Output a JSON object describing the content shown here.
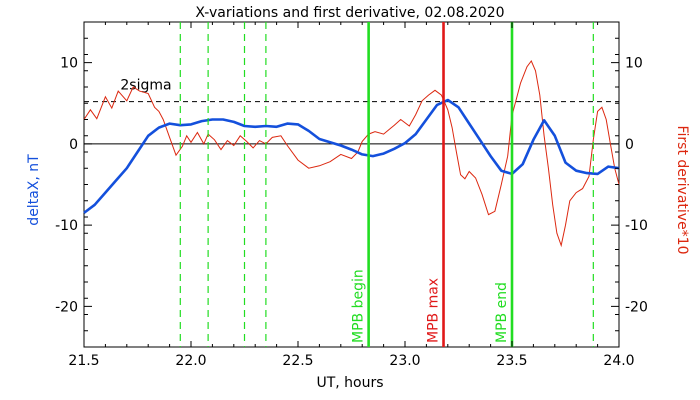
{
  "chart_data": {
    "type": "line",
    "title": "X-variations and first derivative, 02.08.2020",
    "xlabel": "UT, hours",
    "ylabel_left": "deltaX, nT",
    "ylabel_right": "First derivative*10",
    "xlim": [
      21.5,
      24.0
    ],
    "ylim": [
      -25,
      15
    ],
    "x_ticks": [
      {
        "v": 21.5,
        "label": "21.5"
      },
      {
        "v": 22.0,
        "label": "22.0"
      },
      {
        "v": 22.5,
        "label": "22.5"
      },
      {
        "v": 23.0,
        "label": "23.0"
      },
      {
        "v": 23.5,
        "label": "23.5"
      },
      {
        "v": 24.0,
        "label": "24.0"
      }
    ],
    "y_ticks": [
      {
        "v": 10,
        "label": "10"
      },
      {
        "v": 0,
        "label": "0"
      },
      {
        "v": -10,
        "label": "-10"
      },
      {
        "v": -20,
        "label": "-20"
      }
    ],
    "grid": false,
    "colors": {
      "deltaX": "#1450dc",
      "derivative": "#dc2810",
      "mpb": "#22dd22",
      "mpb_max": "#e01818",
      "axis": "#000000"
    },
    "series": [
      {
        "name": "deltaX, nT",
        "axis": "left",
        "points": [
          [
            21.5,
            -8.5
          ],
          [
            21.55,
            -7.5
          ],
          [
            21.6,
            -6.0
          ],
          [
            21.65,
            -4.5
          ],
          [
            21.7,
            -3.0
          ],
          [
            21.75,
            -1.0
          ],
          [
            21.8,
            1.0
          ],
          [
            21.85,
            2.0
          ],
          [
            21.9,
            2.5
          ],
          [
            21.95,
            2.3
          ],
          [
            22.0,
            2.4
          ],
          [
            22.05,
            2.8
          ],
          [
            22.1,
            3.0
          ],
          [
            22.15,
            3.0
          ],
          [
            22.2,
            2.7
          ],
          [
            22.25,
            2.2
          ],
          [
            22.3,
            2.1
          ],
          [
            22.35,
            2.2
          ],
          [
            22.4,
            2.1
          ],
          [
            22.45,
            2.5
          ],
          [
            22.5,
            2.4
          ],
          [
            22.55,
            1.6
          ],
          [
            22.6,
            0.6
          ],
          [
            22.65,
            0.2
          ],
          [
            22.7,
            -0.2
          ],
          [
            22.75,
            -0.7
          ],
          [
            22.8,
            -1.3
          ],
          [
            22.85,
            -1.5
          ],
          [
            22.9,
            -1.2
          ],
          [
            22.95,
            -0.6
          ],
          [
            23.0,
            0.1
          ],
          [
            23.05,
            1.2
          ],
          [
            23.1,
            3.0
          ],
          [
            23.15,
            4.8
          ],
          [
            23.2,
            5.4
          ],
          [
            23.25,
            4.5
          ],
          [
            23.3,
            2.5
          ],
          [
            23.35,
            0.5
          ],
          [
            23.4,
            -1.5
          ],
          [
            23.45,
            -3.3
          ],
          [
            23.5,
            -3.7
          ],
          [
            23.55,
            -2.5
          ],
          [
            23.6,
            0.5
          ],
          [
            23.65,
            2.9
          ],
          [
            23.7,
            1.0
          ],
          [
            23.75,
            -2.3
          ],
          [
            23.8,
            -3.3
          ],
          [
            23.85,
            -3.6
          ],
          [
            23.9,
            -3.7
          ],
          [
            23.95,
            -2.8
          ],
          [
            24.0,
            -3.0
          ]
        ]
      },
      {
        "name": "First derivative*10",
        "axis": "right",
        "points": [
          [
            21.5,
            3.0
          ],
          [
            21.53,
            4.2
          ],
          [
            21.56,
            3.1
          ],
          [
            21.6,
            5.8
          ],
          [
            21.63,
            4.4
          ],
          [
            21.66,
            6.5
          ],
          [
            21.7,
            5.3
          ],
          [
            21.73,
            7.0
          ],
          [
            21.76,
            6.5
          ],
          [
            21.8,
            6.2
          ],
          [
            21.83,
            4.5
          ],
          [
            21.85,
            4.0
          ],
          [
            21.87,
            3.0
          ],
          [
            21.9,
            0.8
          ],
          [
            21.93,
            -1.4
          ],
          [
            21.96,
            -0.3
          ],
          [
            21.98,
            1.0
          ],
          [
            22.0,
            0.2
          ],
          [
            22.03,
            1.4
          ],
          [
            22.06,
            0.0
          ],
          [
            22.08,
            1.2
          ],
          [
            22.11,
            0.5
          ],
          [
            22.14,
            -0.7
          ],
          [
            22.17,
            0.4
          ],
          [
            22.2,
            -0.2
          ],
          [
            22.23,
            1.0
          ],
          [
            22.26,
            0.3
          ],
          [
            22.29,
            -0.5
          ],
          [
            22.32,
            0.4
          ],
          [
            22.35,
            0.0
          ],
          [
            22.38,
            0.8
          ],
          [
            22.42,
            1.0
          ],
          [
            22.45,
            -0.2
          ],
          [
            22.5,
            -2.0
          ],
          [
            22.55,
            -3.0
          ],
          [
            22.6,
            -2.7
          ],
          [
            22.65,
            -2.2
          ],
          [
            22.7,
            -1.3
          ],
          [
            22.75,
            -1.8
          ],
          [
            22.78,
            -1.0
          ],
          [
            22.8,
            0.3
          ],
          [
            22.83,
            1.2
          ],
          [
            22.86,
            1.5
          ],
          [
            22.9,
            1.2
          ],
          [
            22.95,
            2.3
          ],
          [
            22.98,
            3.0
          ],
          [
            23.02,
            2.2
          ],
          [
            23.05,
            3.6
          ],
          [
            23.08,
            5.3
          ],
          [
            23.11,
            6.0
          ],
          [
            23.14,
            6.6
          ],
          [
            23.17,
            6.0
          ],
          [
            23.2,
            4.2
          ],
          [
            23.22,
            2.0
          ],
          [
            23.24,
            -1.0
          ],
          [
            23.26,
            -3.8
          ],
          [
            23.28,
            -4.3
          ],
          [
            23.3,
            -3.4
          ],
          [
            23.33,
            -4.2
          ],
          [
            23.36,
            -6.2
          ],
          [
            23.39,
            -8.7
          ],
          [
            23.42,
            -8.3
          ],
          [
            23.45,
            -5.0
          ],
          [
            23.48,
            -1.5
          ],
          [
            23.5,
            3.5
          ],
          [
            23.52,
            5.5
          ],
          [
            23.54,
            7.5
          ],
          [
            23.57,
            9.5
          ],
          [
            23.59,
            10.2
          ],
          [
            23.61,
            9.0
          ],
          [
            23.63,
            6.0
          ],
          [
            23.65,
            1.0
          ],
          [
            23.67,
            -3.0
          ],
          [
            23.69,
            -7.5
          ],
          [
            23.71,
            -11.0
          ],
          [
            23.73,
            -12.5
          ],
          [
            23.75,
            -10.0
          ],
          [
            23.77,
            -7.0
          ],
          [
            23.8,
            -6.0
          ],
          [
            23.83,
            -5.5
          ],
          [
            23.86,
            -4.0
          ],
          [
            23.88,
            0.5
          ],
          [
            23.9,
            4.0
          ],
          [
            23.92,
            4.5
          ],
          [
            23.94,
            3.0
          ],
          [
            23.96,
            0.0
          ],
          [
            23.98,
            -3.0
          ],
          [
            24.0,
            -5.0
          ]
        ]
      }
    ],
    "threshold": {
      "value": 5.2,
      "label": "2sigma",
      "style": "dashed"
    },
    "vertical_markers": [
      {
        "x": 21.95,
        "label": "",
        "style": "dashed"
      },
      {
        "x": 22.08,
        "label": "",
        "style": "dashed"
      },
      {
        "x": 22.25,
        "label": "",
        "style": "dashed"
      },
      {
        "x": 22.35,
        "label": "",
        "style": "dashed"
      },
      {
        "x": 23.88,
        "label": "",
        "style": "dashed"
      },
      {
        "x": 22.83,
        "label": "MPB begin",
        "style": "solid"
      },
      {
        "x": 23.18,
        "label": "MPB max",
        "style": "solid",
        "color_key": "mpb_max"
      },
      {
        "x": 23.5,
        "label": "MPB end",
        "style": "solid"
      }
    ]
  }
}
